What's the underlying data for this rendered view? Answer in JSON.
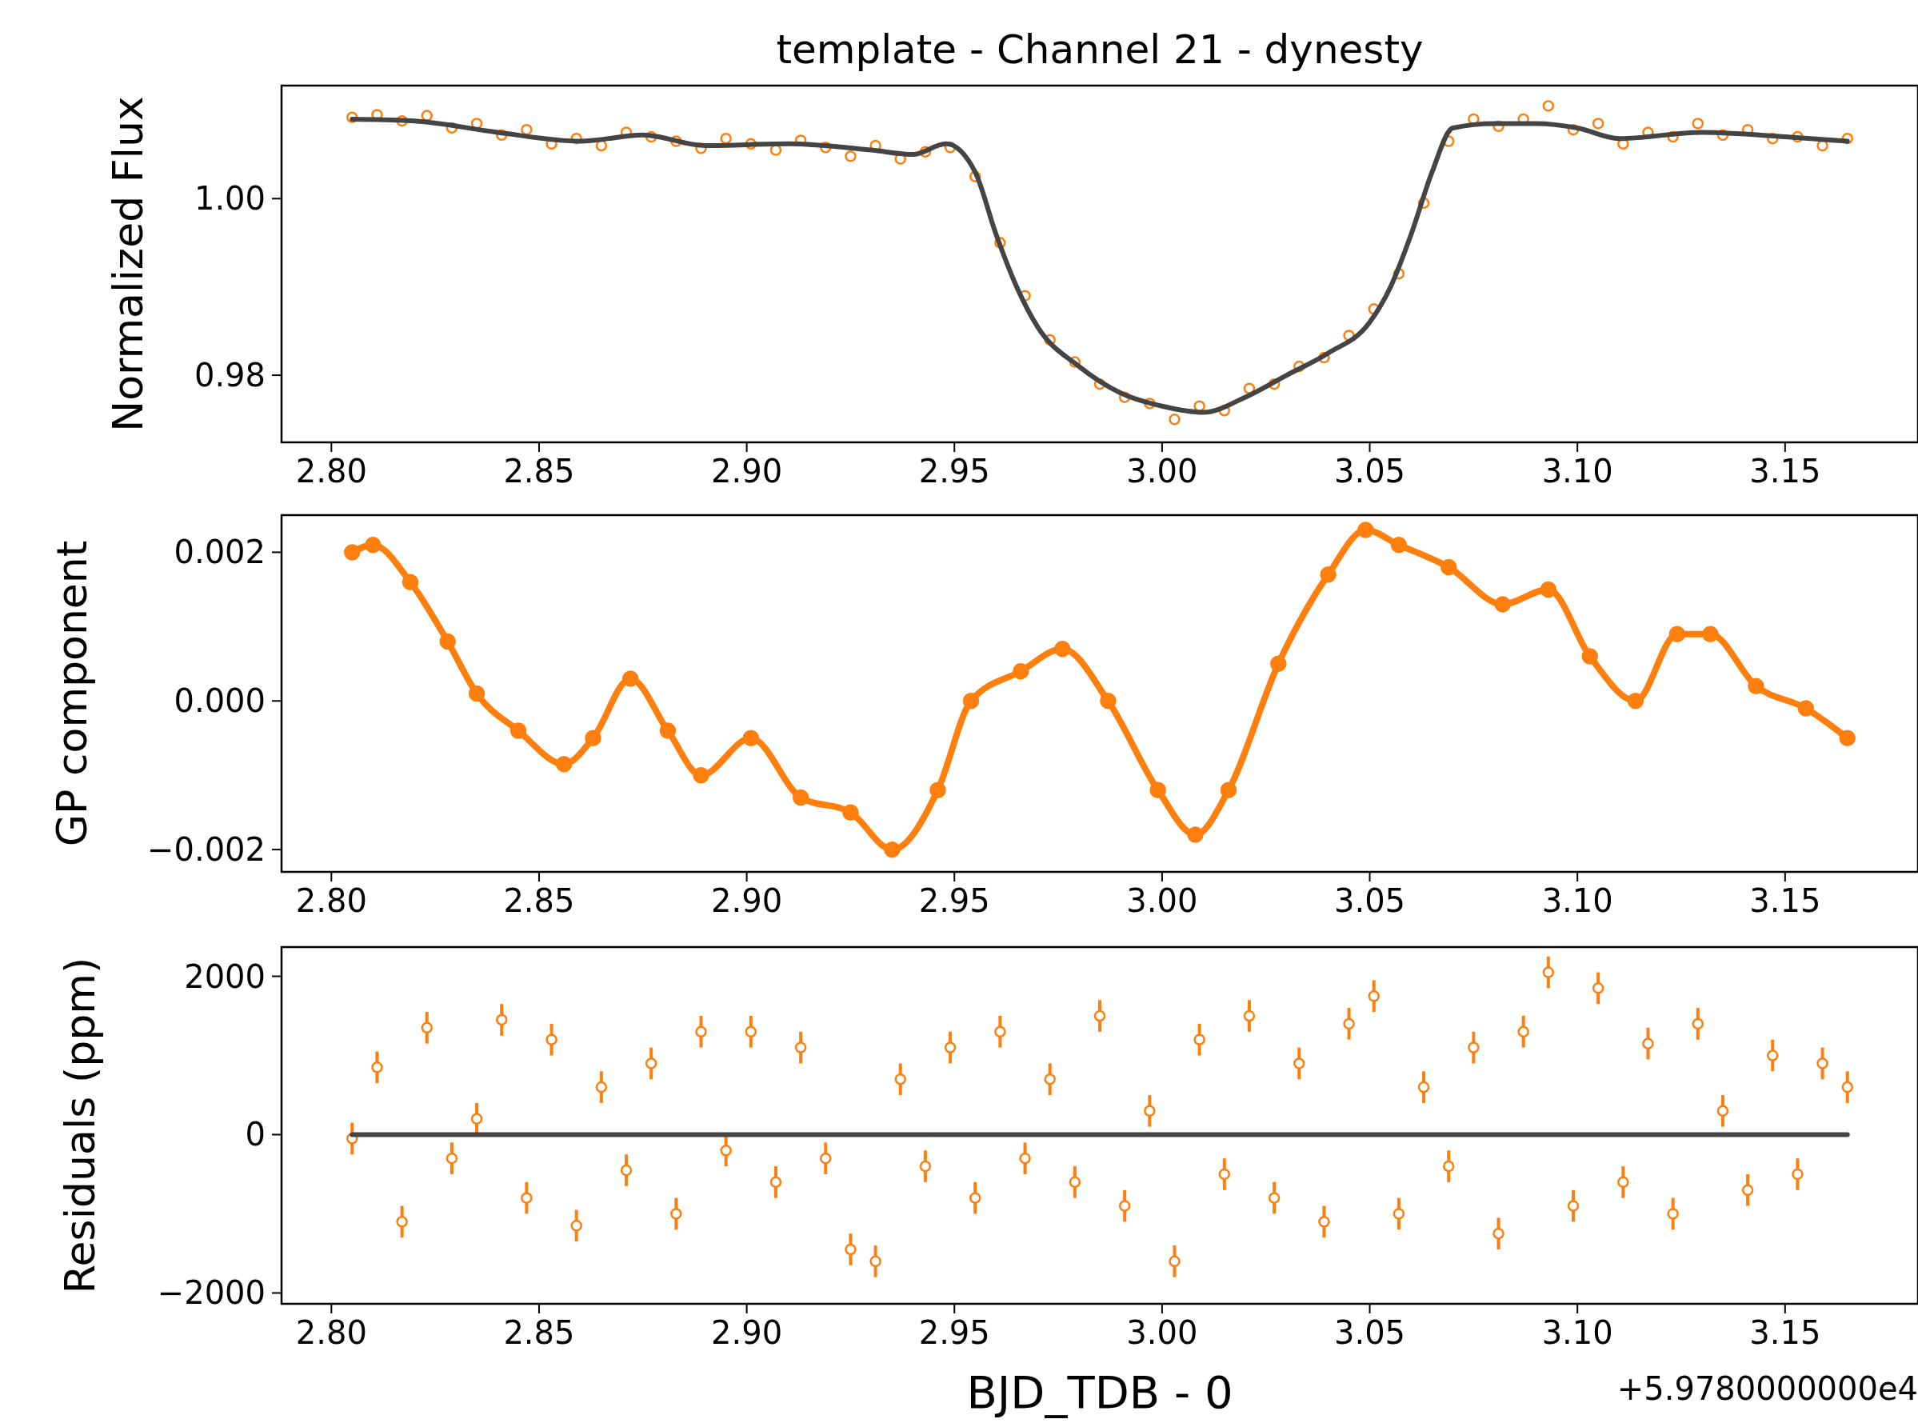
{
  "chart_data": [
    {
      "type": "scatter",
      "title": "template - Channel 21 - dynesty",
      "ylabel": "Normalized Flux",
      "xlim": [
        2.788,
        3.182
      ],
      "ylim": [
        0.9724,
        1.0128
      ],
      "xticks": [
        {
          "value": 2.8,
          "label": "2.80"
        },
        {
          "value": 2.85,
          "label": "2.85"
        },
        {
          "value": 2.9,
          "label": "2.90"
        },
        {
          "value": 2.95,
          "label": "2.95"
        },
        {
          "value": 3.0,
          "label": "3.00"
        },
        {
          "value": 3.05,
          "label": "3.05"
        },
        {
          "value": 3.1,
          "label": "3.10"
        },
        {
          "value": 3.15,
          "label": "3.15"
        }
      ],
      "yticks": [
        {
          "value": 0.98,
          "label": "0.98"
        },
        {
          "value": 1.0,
          "label": "1.00"
        }
      ],
      "series": [
        {
          "marker": "circle",
          "color": "#ff7f0e",
          "x": [
            2.805,
            2.811,
            2.817,
            2.823,
            2.829,
            2.835,
            2.841,
            2.847,
            2.853,
            2.859,
            2.865,
            2.871,
            2.877,
            2.883,
            2.889,
            2.895,
            2.901,
            2.907,
            2.913,
            2.919,
            2.925,
            2.931,
            2.937,
            2.943,
            2.949,
            2.955,
            2.961,
            2.967,
            2.973,
            2.979,
            2.985,
            2.991,
            2.997,
            3.003,
            3.009,
            3.015,
            3.021,
            3.027,
            3.033,
            3.039,
            3.045,
            3.051,
            3.057,
            3.063,
            3.069,
            3.075,
            3.081,
            3.087,
            3.093,
            3.099,
            3.105,
            3.111,
            3.117,
            3.123,
            3.129,
            3.135,
            3.141,
            3.147,
            3.153,
            3.159,
            3.165
          ],
          "values": [
            1.0092,
            1.0095,
            1.0088,
            1.0094,
            1.008,
            1.0085,
            1.0072,
            1.0078,
            1.0062,
            1.0068,
            1.006,
            1.0075,
            1.007,
            1.0065,
            1.0057,
            1.0068,
            1.0062,
            1.0055,
            1.0066,
            1.0058,
            1.0048,
            1.006,
            1.0045,
            1.0053,
            1.0058,
            1.0025,
            0.995,
            0.989,
            0.984,
            0.9815,
            0.979,
            0.9775,
            0.9768,
            0.975,
            0.9765,
            0.976,
            0.9785,
            0.979,
            0.981,
            0.982,
            0.9845,
            0.9875,
            0.9915,
            0.9995,
            1.0065,
            1.009,
            1.0082,
            1.009,
            1.0105,
            1.0078,
            1.0085,
            1.0062,
            1.0075,
            1.007,
            1.0085,
            1.0072,
            1.0078,
            1.0068,
            1.007,
            1.006,
            1.0068
          ]
        },
        {
          "type": "line",
          "color": "#444444",
          "x": [
            2.805,
            2.82,
            2.84,
            2.86,
            2.875,
            2.89,
            2.91,
            2.93,
            2.94,
            2.948,
            2.955,
            2.96,
            2.965,
            2.97,
            2.98,
            2.99,
            3.0,
            3.01,
            3.02,
            3.03,
            3.04,
            3.05,
            3.055,
            3.06,
            3.065,
            3.07,
            3.08,
            3.09,
            3.1,
            3.11,
            3.13,
            3.15,
            3.165
          ],
          "values": [
            1.009,
            1.0088,
            1.0075,
            1.0065,
            1.0072,
            1.006,
            1.0062,
            1.0055,
            1.005,
            1.0062,
            1.003,
            0.996,
            0.99,
            0.9855,
            0.981,
            0.978,
            0.9765,
            0.9758,
            0.9775,
            0.98,
            0.9825,
            0.986,
            0.99,
            0.996,
            1.003,
            1.008,
            1.0085,
            1.0085,
            1.008,
            1.0068,
            1.0075,
            1.007,
            1.0065
          ]
        }
      ]
    },
    {
      "type": "line",
      "ylabel": "GP component",
      "xlim": [
        2.788,
        3.182
      ],
      "ylim": [
        -0.0023,
        0.0025
      ],
      "xticks": [
        {
          "value": 2.8,
          "label": "2.80"
        },
        {
          "value": 2.85,
          "label": "2.85"
        },
        {
          "value": 2.9,
          "label": "2.90"
        },
        {
          "value": 2.95,
          "label": "2.95"
        },
        {
          "value": 3.0,
          "label": "3.00"
        },
        {
          "value": 3.05,
          "label": "3.05"
        },
        {
          "value": 3.1,
          "label": "3.10"
        },
        {
          "value": 3.15,
          "label": "3.15"
        }
      ],
      "yticks": [
        {
          "value": -0.002,
          "label": "−0.002"
        },
        {
          "value": 0,
          "label": "0.000"
        },
        {
          "value": 0.002,
          "label": "0.002"
        }
      ],
      "series": [
        {
          "marker": "circle",
          "color": "#ff7f0e",
          "x": [
            2.805,
            2.81,
            2.819,
            2.828,
            2.835,
            2.845,
            2.856,
            2.863,
            2.872,
            2.881,
            2.889,
            2.901,
            2.913,
            2.925,
            2.935,
            2.946,
            2.954,
            2.966,
            2.976,
            2.987,
            2.999,
            3.008,
            3.016,
            3.028,
            3.04,
            3.049,
            3.057,
            3.069,
            3.082,
            3.093,
            3.103,
            3.114,
            3.124,
            3.132,
            3.143,
            3.155,
            3.165
          ],
          "values": [
            0.002,
            0.0021,
            0.0016,
            0.0008,
            0.0001,
            -0.0004,
            -0.00085,
            -0.0005,
            0.0003,
            -0.0004,
            -0.001,
            -0.0005,
            -0.0013,
            -0.0015,
            -0.002,
            -0.0012,
            0.0,
            0.0004,
            0.0007,
            0.0,
            -0.0012,
            -0.0018,
            -0.0012,
            0.0005,
            0.0017,
            0.0023,
            0.0021,
            0.0018,
            0.0013,
            0.0015,
            0.0006,
            0.0,
            0.0009,
            0.0009,
            0.0002,
            -0.0001,
            -0.0005
          ]
        }
      ]
    },
    {
      "type": "scatter",
      "ylabel": "Residuals (ppm)",
      "xlabel": "BJD_TDB - 0",
      "xlim": [
        2.788,
        3.182
      ],
      "ylim": [
        -2137,
        2369
      ],
      "xticks": [
        {
          "value": 2.8,
          "label": "2.80"
        },
        {
          "value": 2.85,
          "label": "2.85"
        },
        {
          "value": 2.9,
          "label": "2.90"
        },
        {
          "value": 2.95,
          "label": "2.95"
        },
        {
          "value": 3.0,
          "label": "3.00"
        },
        {
          "value": 3.05,
          "label": "3.05"
        },
        {
          "value": 3.1,
          "label": "3.10"
        },
        {
          "value": 3.15,
          "label": "3.15"
        }
      ],
      "yticks": [
        {
          "value": -2000,
          "label": "−2000"
        },
        0,
        2000
      ],
      "annotations": [
        "+5.9780000000e4"
      ],
      "series": [
        {
          "marker": "circle",
          "color": "#ff7f0e",
          "x": [
            2.805,
            2.811,
            2.817,
            2.823,
            2.829,
            2.835,
            2.841,
            2.847,
            2.853,
            2.859,
            2.865,
            2.871,
            2.877,
            2.883,
            2.889,
            2.895,
            2.901,
            2.907,
            2.913,
            2.919,
            2.925,
            2.931,
            2.937,
            2.943,
            2.949,
            2.955,
            2.961,
            2.967,
            2.973,
            2.979,
            2.985,
            2.991,
            2.997,
            3.003,
            3.009,
            3.015,
            3.021,
            3.027,
            3.033,
            3.039,
            3.045,
            3.051,
            3.057,
            3.063,
            3.069,
            3.075,
            3.081,
            3.087,
            3.093,
            3.099,
            3.105,
            3.111,
            3.117,
            3.123,
            3.129,
            3.135,
            3.141,
            3.147,
            3.153,
            3.159,
            3.165
          ],
          "values": [
            -50,
            850,
            -1100,
            1350,
            -300,
            200,
            1450,
            -800,
            1200,
            -1150,
            600,
            -450,
            900,
            -1000,
            1300,
            -200,
            1300,
            -600,
            1100,
            -300,
            -1450,
            -1600,
            700,
            -400,
            1100,
            -800,
            1300,
            -300,
            700,
            -600,
            1500,
            -900,
            300,
            -1600,
            1200,
            -500,
            1500,
            -800,
            900,
            -1100,
            1400,
            1750,
            -1000,
            600,
            -400,
            1100,
            -1250,
            1300,
            2050,
            -900,
            1850,
            -600,
            1150,
            -1000,
            1400,
            300,
            -700,
            1000,
            -500,
            900,
            600
          ],
          "errors": [
            200,
            200,
            200,
            200,
            200,
            200,
            200,
            200,
            200,
            200,
            200,
            200,
            200,
            200,
            200,
            200,
            200,
            200,
            200,
            200,
            200,
            200,
            200,
            200,
            200,
            200,
            200,
            200,
            200,
            200,
            200,
            200,
            200,
            200,
            200,
            200,
            200,
            200,
            200,
            200,
            200,
            200,
            200,
            200,
            200,
            200,
            200,
            200,
            200,
            200,
            200,
            200,
            200,
            200,
            200,
            200,
            200,
            200,
            200,
            200,
            200
          ]
        },
        {
          "type": "line",
          "color": "#444444",
          "x": [
            2.805,
            3.165
          ],
          "values": [
            0,
            0
          ]
        }
      ]
    }
  ]
}
